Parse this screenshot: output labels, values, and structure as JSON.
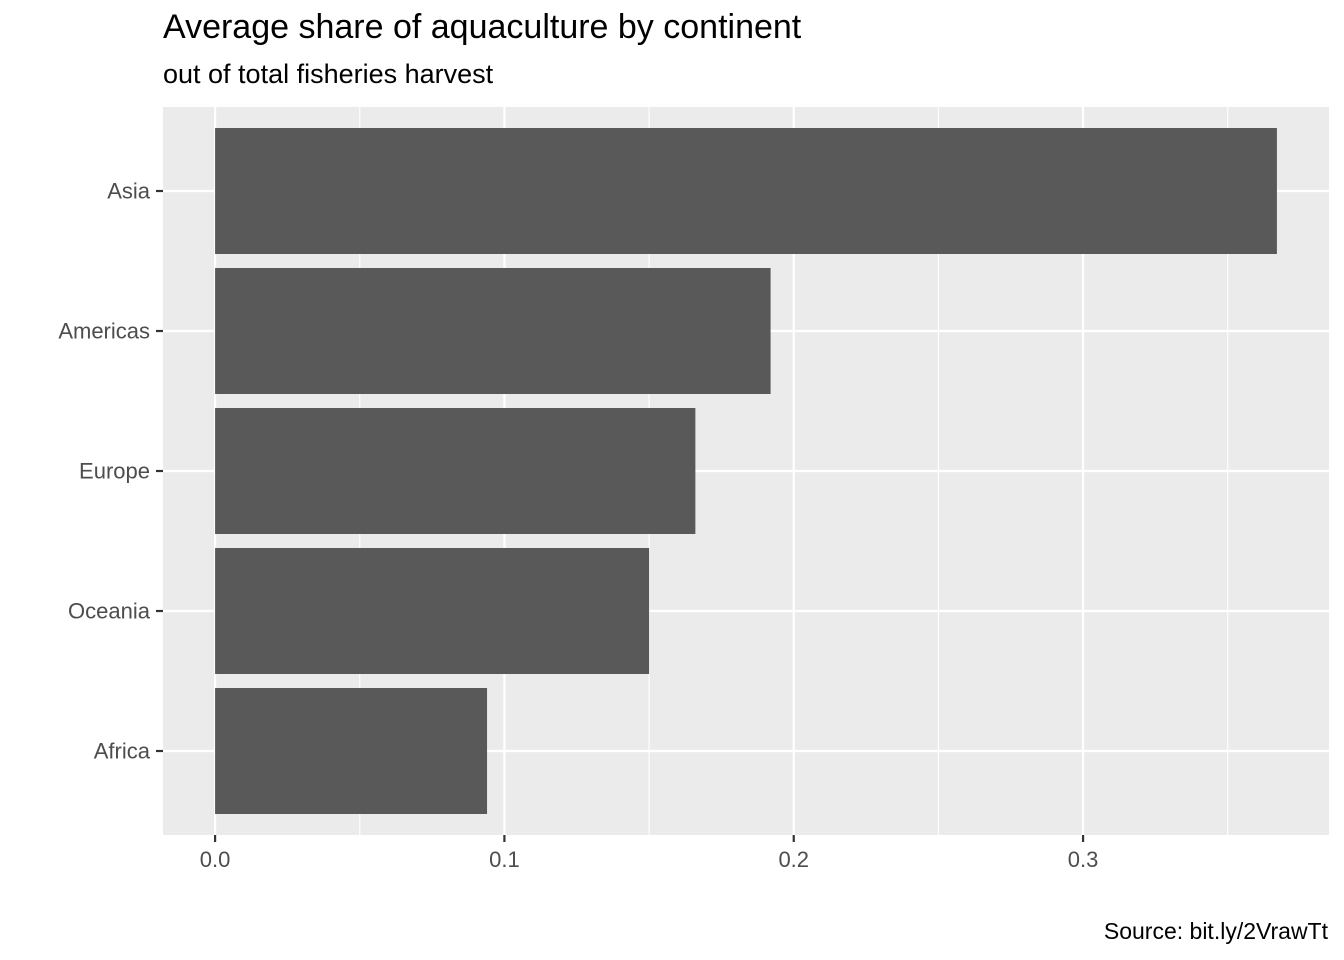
{
  "chart_data": {
    "type": "bar",
    "orientation": "horizontal",
    "title": "Average share of aquaculture by continent",
    "subtitle": "out of total fisheries harvest",
    "caption": "Source: bit.ly/2VrawTt",
    "xlabel": "",
    "ylabel": "",
    "categories": [
      "Asia",
      "Americas",
      "Europe",
      "Oceania",
      "Africa"
    ],
    "values": [
      0.367,
      0.192,
      0.166,
      0.15,
      0.094
    ],
    "xlim": [
      -0.018,
      0.385
    ],
    "xticks": [
      0.0,
      0.1,
      0.2,
      0.3
    ],
    "xtick_labels": [
      "0.0",
      "0.1",
      "0.2",
      "0.3"
    ],
    "grid": true,
    "colors": {
      "bar": "#595959",
      "panel_background": "#ebebeb",
      "grid_major": "#ffffff",
      "tick_label": "#4d4d4d"
    }
  }
}
